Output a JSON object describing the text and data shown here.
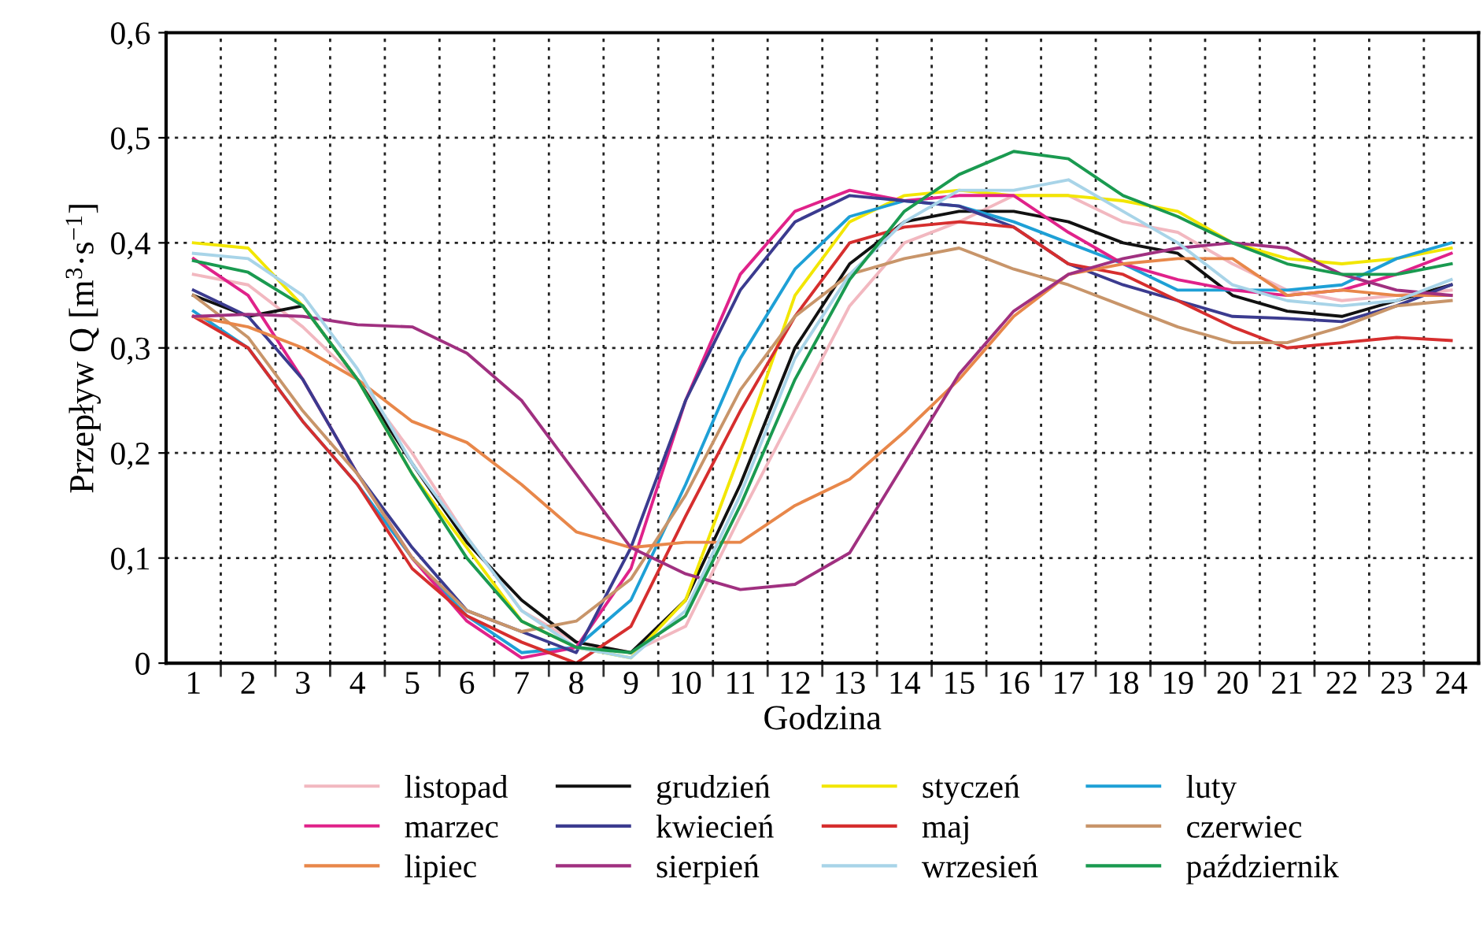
{
  "chart_data": {
    "type": "line",
    "xlabel": "Godzina",
    "ylabel": "Przepływ Q [m$^{3}$·s$^{−1}$]",
    "categories": [
      "1",
      "2",
      "3",
      "4",
      "5",
      "6",
      "7",
      "8",
      "9",
      "10",
      "11",
      "12",
      "13",
      "14",
      "15",
      "16",
      "17",
      "18",
      "19",
      "20",
      "21",
      "22",
      "23",
      "24"
    ],
    "ylim": [
      0,
      0.6
    ],
    "yticks": [
      0,
      {
        "value": 0.1,
        "label": "0,1"
      },
      {
        "value": 0.2,
        "label": "0,2"
      },
      {
        "value": 0.3,
        "label": "0,3"
      },
      {
        "value": 0.4,
        "label": "0,4"
      },
      {
        "value": 0.5,
        "label": "0,5"
      },
      {
        "value": 0.6,
        "label": "0,6"
      }
    ],
    "grid": true,
    "legend": "bottom",
    "marker": "none",
    "line_style": "solid",
    "series": [
      {
        "name": "listopad",
        "color": "#f2b8c0",
        "values": [
          0.37,
          0.36,
          0.32,
          0.27,
          0.2,
          0.12,
          0.05,
          0.02,
          0.01,
          0.035,
          0.14,
          0.24,
          0.34,
          0.4,
          0.42,
          0.445,
          0.445,
          0.42,
          0.41,
          0.38,
          0.355,
          0.345,
          0.35,
          0.355
        ]
      },
      {
        "name": "grudzień",
        "color": "#111111",
        "values": [
          0.35,
          0.33,
          0.34,
          0.27,
          0.19,
          0.115,
          0.06,
          0.02,
          0.01,
          0.06,
          0.17,
          0.3,
          0.38,
          0.42,
          0.43,
          0.43,
          0.42,
          0.4,
          0.39,
          0.35,
          0.335,
          0.33,
          0.345,
          0.36
        ]
      },
      {
        "name": "styczeń",
        "color": "#f2e600",
        "values": [
          0.4,
          0.395,
          0.34,
          0.27,
          0.18,
          0.11,
          0.04,
          0.015,
          0.005,
          0.06,
          0.2,
          0.35,
          0.42,
          0.445,
          0.45,
          0.445,
          0.445,
          0.44,
          0.43,
          0.4,
          0.385,
          0.38,
          0.385,
          0.395
        ]
      },
      {
        "name": "luty",
        "color": "#1ea0d6",
        "values": [
          0.335,
          0.3,
          0.23,
          0.17,
          0.1,
          0.045,
          0.01,
          0.015,
          0.06,
          0.17,
          0.29,
          0.375,
          0.425,
          0.44,
          0.435,
          0.42,
          0.4,
          0.38,
          0.355,
          0.355,
          0.355,
          0.36,
          0.385,
          0.4
        ]
      },
      {
        "name": "marzec",
        "color": "#e0228a",
        "values": [
          0.385,
          0.35,
          0.27,
          0.18,
          0.1,
          0.04,
          0.005,
          0.015,
          0.09,
          0.25,
          0.37,
          0.43,
          0.45,
          0.44,
          0.445,
          0.445,
          0.41,
          0.38,
          0.365,
          0.355,
          0.35,
          0.355,
          0.37,
          0.39
        ]
      },
      {
        "name": "kwiecień",
        "color": "#3b3b8f",
        "values": [
          0.355,
          0.33,
          0.27,
          0.18,
          0.11,
          0.05,
          0.03,
          0.01,
          0.11,
          0.25,
          0.355,
          0.42,
          0.445,
          0.44,
          0.435,
          0.415,
          0.38,
          0.36,
          0.345,
          0.33,
          0.328,
          0.325,
          0.34,
          0.36
        ]
      },
      {
        "name": "maj",
        "color": "#d62e2e",
        "values": [
          0.33,
          0.3,
          0.23,
          0.17,
          0.09,
          0.045,
          0.02,
          0.0,
          0.035,
          0.14,
          0.24,
          0.33,
          0.4,
          0.415,
          0.42,
          0.415,
          0.38,
          0.37,
          0.345,
          0.32,
          0.3,
          0.305,
          0.31,
          0.307
        ]
      },
      {
        "name": "czerwiec",
        "color": "#c8956a",
        "values": [
          0.35,
          0.31,
          0.24,
          0.18,
          0.1,
          0.05,
          0.03,
          0.04,
          0.08,
          0.16,
          0.26,
          0.33,
          0.37,
          0.385,
          0.395,
          0.375,
          0.36,
          0.34,
          0.32,
          0.305,
          0.305,
          0.32,
          0.34,
          0.345
        ]
      },
      {
        "name": "lipiec",
        "color": "#e8874a",
        "values": [
          0.33,
          0.32,
          0.3,
          0.27,
          0.23,
          0.21,
          0.17,
          0.125,
          0.11,
          0.115,
          0.115,
          0.15,
          0.175,
          0.22,
          0.27,
          0.33,
          0.37,
          0.38,
          0.385,
          0.385,
          0.35,
          0.355,
          0.35,
          0.35
        ]
      },
      {
        "name": "sierpień",
        "color": "#a03080",
        "values": [
          0.33,
          0.332,
          0.33,
          0.322,
          0.32,
          0.295,
          0.25,
          0.18,
          0.11,
          0.085,
          0.07,
          0.075,
          0.105,
          0.19,
          0.275,
          0.335,
          0.37,
          0.385,
          0.395,
          0.4,
          0.395,
          0.37,
          0.355,
          0.35
        ]
      },
      {
        "name": "wrzesień",
        "color": "#a8d4e8",
        "values": [
          0.39,
          0.385,
          0.35,
          0.28,
          0.19,
          0.12,
          0.05,
          0.015,
          0.005,
          0.05,
          0.16,
          0.29,
          0.37,
          0.42,
          0.45,
          0.45,
          0.46,
          0.43,
          0.4,
          0.36,
          0.345,
          0.34,
          0.345,
          0.365
        ]
      },
      {
        "name": "październik",
        "color": "#1a9a50",
        "values": [
          0.383,
          0.372,
          0.34,
          0.27,
          0.18,
          0.1,
          0.04,
          0.015,
          0.01,
          0.045,
          0.15,
          0.27,
          0.365,
          0.43,
          0.465,
          0.487,
          0.48,
          0.445,
          0.425,
          0.4,
          0.38,
          0.37,
          0.37,
          0.38
        ]
      }
    ]
  }
}
